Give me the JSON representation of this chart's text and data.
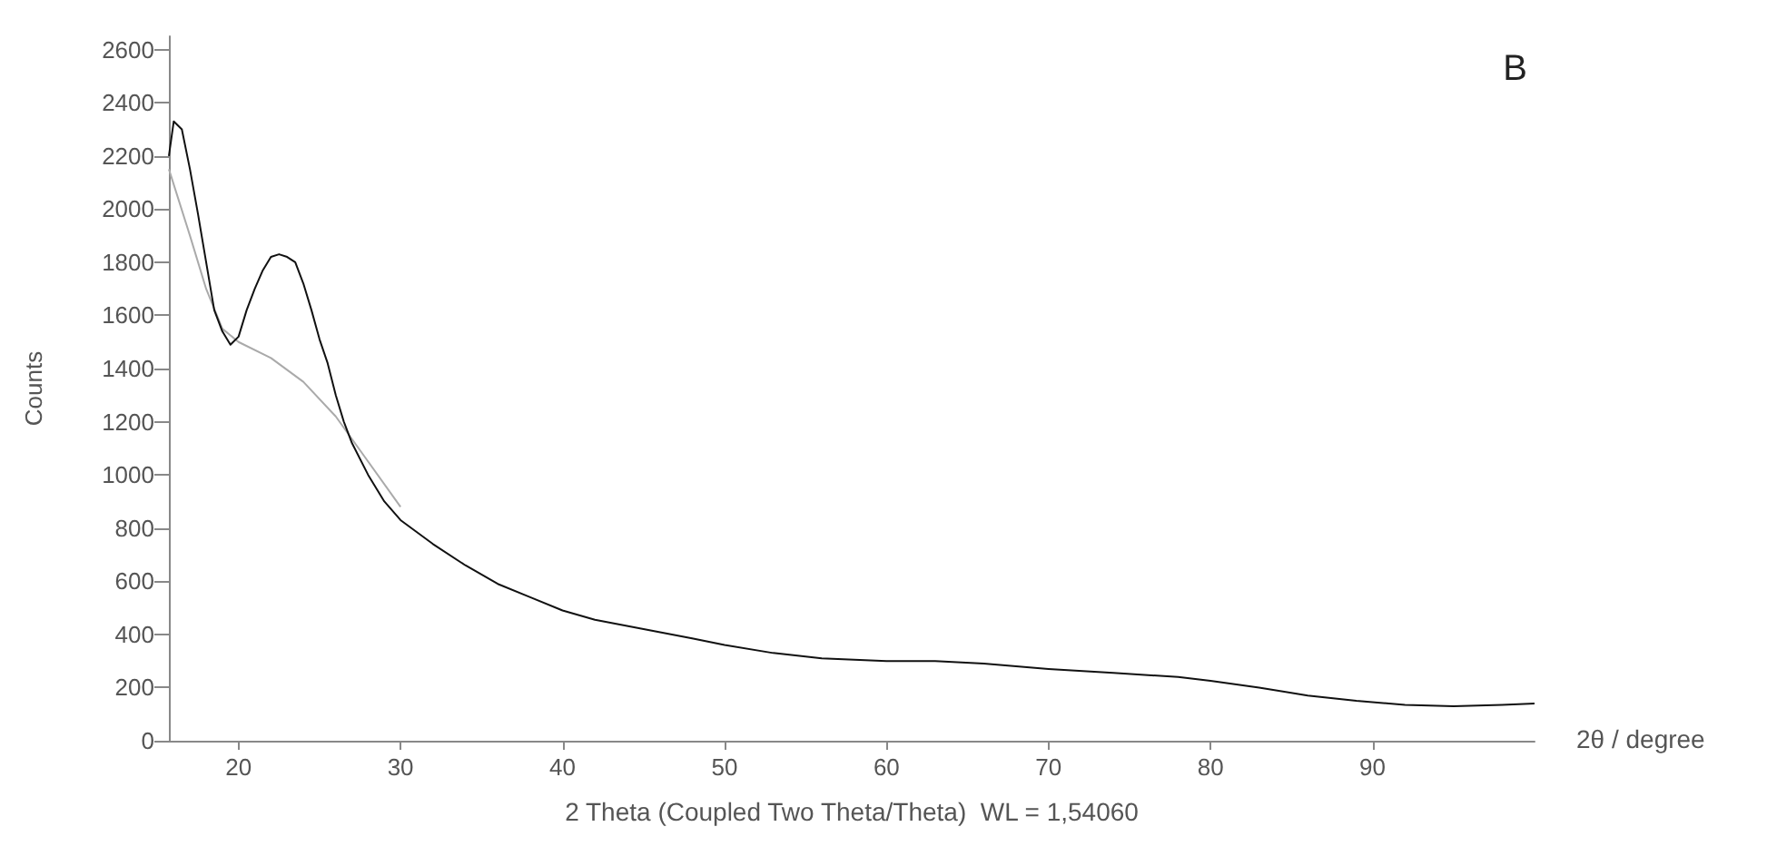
{
  "chart_data": {
    "type": "line",
    "xlabel": "2 Theta (Coupled Two Theta/Theta)  WL = 1,54060",
    "ylabel": "Counts",
    "annotations": [
      "B",
      "2θ / degree"
    ],
    "xlim": [
      15.7,
      100
    ],
    "xticks": [
      20,
      30,
      40,
      50,
      60,
      70,
      80,
      90
    ],
    "ylim": [
      0,
      2650
    ],
    "yticks": [
      0,
      200,
      400,
      600,
      800,
      1000,
      1200,
      1400,
      1600,
      1800,
      2000,
      2200,
      2400,
      2600
    ],
    "marker": "none",
    "line_style": "solid",
    "series": [
      {
        "color": "#aaaaaa",
        "x": [
          15.7,
          17,
          18,
          19,
          20,
          22,
          24,
          26,
          28,
          30
        ],
        "values": [
          2150,
          1900,
          1700,
          1550,
          1500,
          1440,
          1350,
          1220,
          1050,
          880
        ]
      },
      {
        "color": "#111111",
        "x": [
          15.7,
          16,
          16.5,
          17,
          17.5,
          18,
          18.5,
          19,
          19.5,
          20,
          20.5,
          21,
          21.5,
          22,
          22.5,
          23,
          23.5,
          24,
          24.5,
          25,
          25.5,
          26,
          26.5,
          27,
          28,
          29,
          30,
          32,
          34,
          36,
          38,
          40,
          42,
          45,
          48,
          50,
          53,
          56,
          60,
          63,
          66,
          70,
          74,
          78,
          80,
          83,
          86,
          89,
          92,
          95,
          98,
          100
        ],
        "values": [
          2200,
          2330,
          2300,
          2150,
          1980,
          1800,
          1620,
          1540,
          1490,
          1520,
          1620,
          1700,
          1770,
          1820,
          1830,
          1820,
          1800,
          1720,
          1620,
          1510,
          1420,
          1300,
          1200,
          1120,
          1000,
          900,
          830,
          740,
          660,
          590,
          540,
          490,
          455,
          420,
          385,
          360,
          330,
          310,
          300,
          300,
          290,
          270,
          255,
          240,
          225,
          200,
          170,
          150,
          135,
          130,
          135,
          140
        ]
      }
    ]
  }
}
